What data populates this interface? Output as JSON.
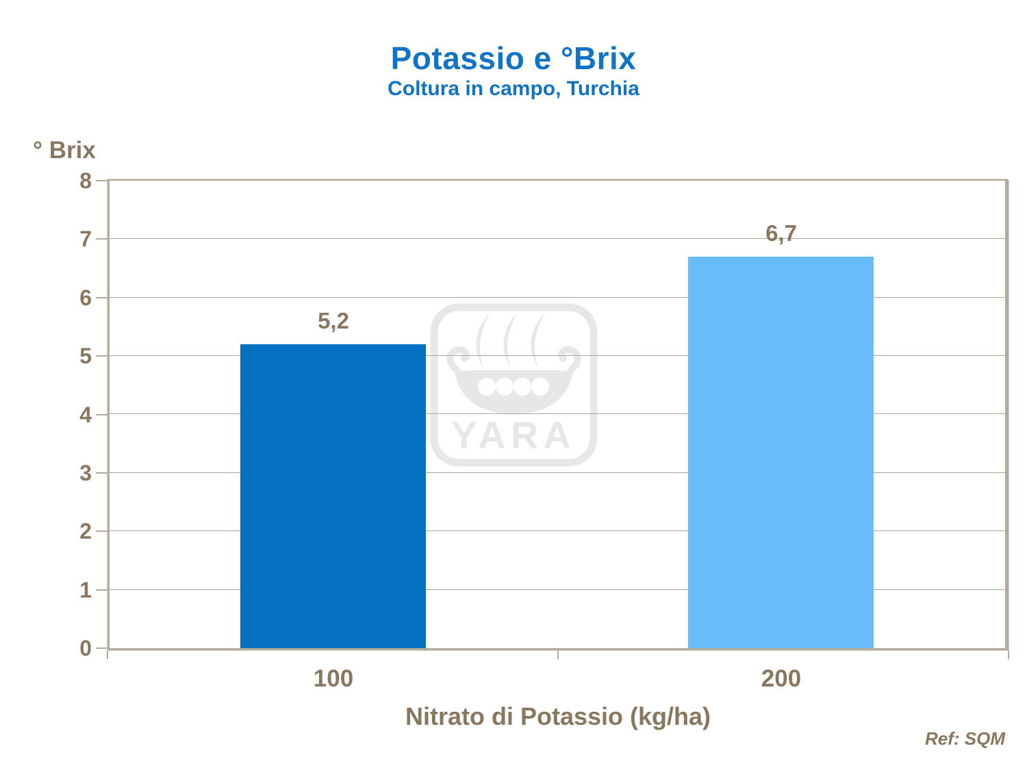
{
  "chart_data": {
    "type": "bar",
    "title": "Potassio e °Brix",
    "subtitle": "Coltura in campo, Turchia",
    "categories": [
      "100",
      "200"
    ],
    "values": [
      5.2,
      6.7
    ],
    "value_labels": [
      "5,2",
      "6,7"
    ],
    "xlabel": "Nitrato di Potassio (kg/ha)",
    "ylabel": "° Brix",
    "ylim": [
      0,
      8
    ],
    "yticks": [
      0,
      1,
      2,
      3,
      4,
      5,
      6,
      7,
      8
    ],
    "grid": true,
    "legend": false,
    "bar_colors": [
      "#0571C1",
      "#69BCFA"
    ],
    "bar_width_ratio": 0.415
  },
  "footer": {
    "reference": "Ref: SQM"
  },
  "watermark": {
    "label": "YARA",
    "icon": "yara-viking-ship-logo"
  },
  "colors": {
    "title_blue": "#1173C5",
    "bar_dark_blue": "#0571C1",
    "bar_light_blue": "#69BCFA",
    "text_brown": "#8A7760",
    "axis_line": "#B4AA9E",
    "watermark_gray": "#E7E7E7"
  }
}
